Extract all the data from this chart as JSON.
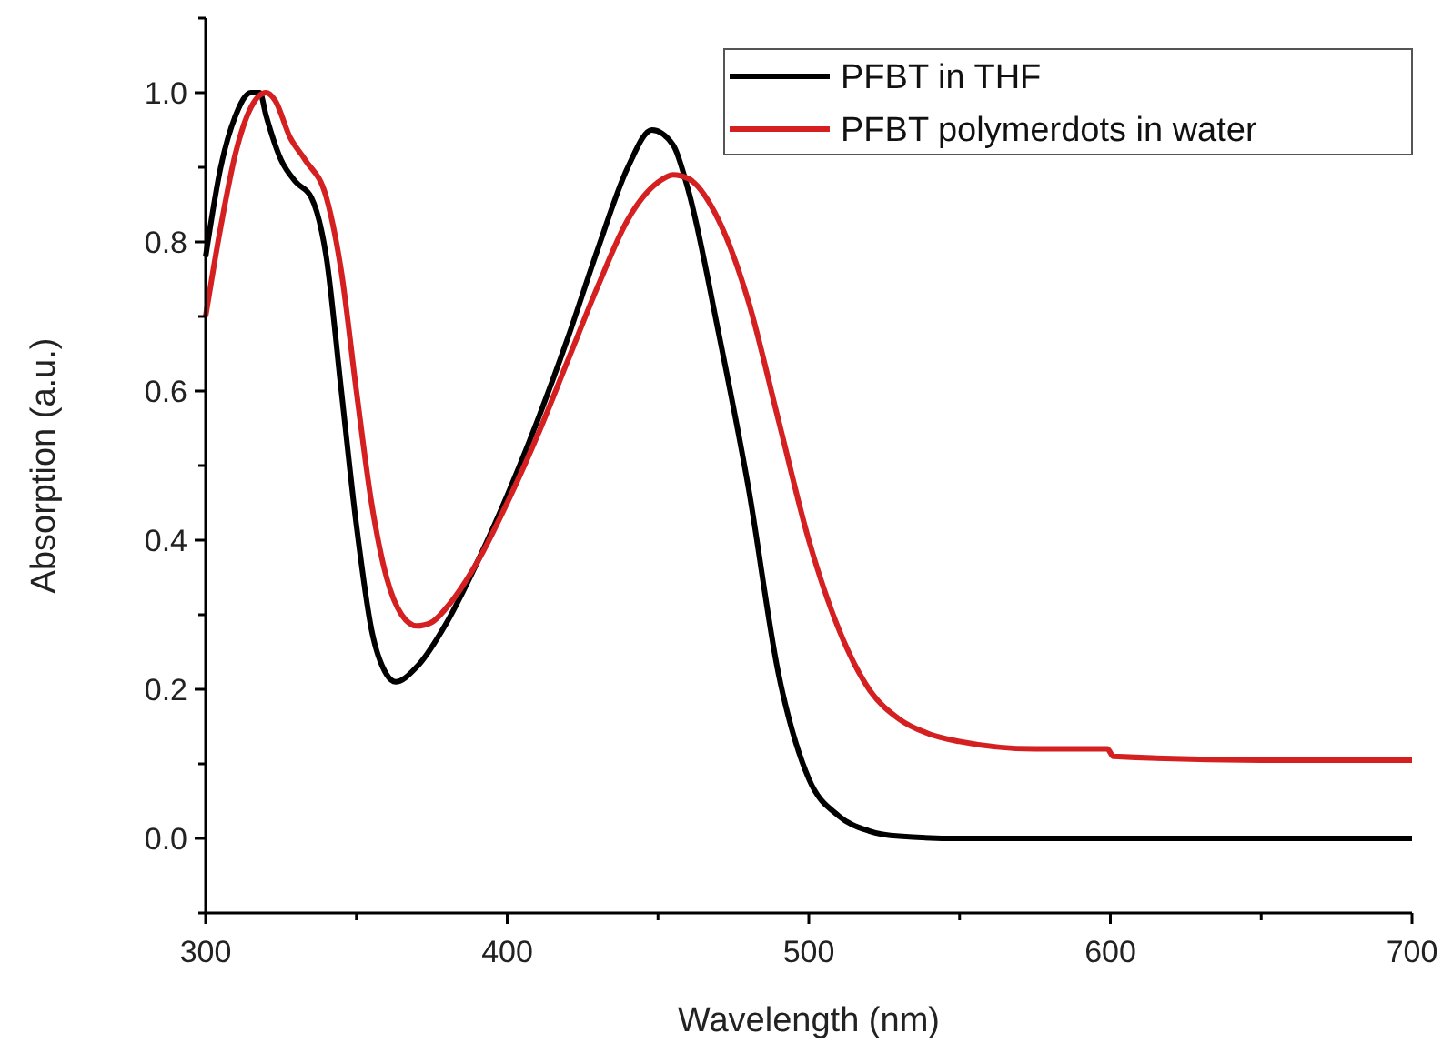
{
  "chart_data": {
    "type": "line",
    "xlabel": "Wavelength (nm)",
    "ylabel": "Absorption (a.u.)",
    "xlim": [
      300,
      700
    ],
    "xticks": [
      300,
      {
        "value": 350,
        "label": null
      },
      400,
      {
        "value": 450,
        "label": null
      },
      500,
      {
        "value": 550,
        "label": null
      },
      600,
      {
        "value": 650,
        "label": null
      },
      700
    ],
    "ylim": [
      -0.1,
      1.1
    ],
    "yticks": [
      {
        "value": -0.1,
        "label": null
      },
      {
        "value": 0,
        "label": "0.0"
      },
      {
        "value": 0.1,
        "label": null
      },
      0.2,
      {
        "value": 0.3,
        "label": null
      },
      0.4,
      {
        "value": 0.5,
        "label": null
      },
      0.6,
      {
        "value": 0.7,
        "label": null
      },
      0.8,
      {
        "value": 0.9,
        "label": null
      },
      {
        "value": 1,
        "label": "1.0"
      },
      {
        "value": 1.1,
        "label": null
      }
    ],
    "grid": false,
    "legend": "top right",
    "marker": "none",
    "line_style": "solid",
    "series": [
      {
        "name": "PFBT in THF",
        "color": "#000000",
        "x": [
          300,
          305,
          310,
          315,
          318,
          320,
          325,
          330,
          335,
          340,
          345,
          350,
          355,
          360,
          363,
          370,
          380,
          390,
          400,
          410,
          420,
          430,
          440,
          448,
          455,
          460,
          470,
          480,
          490,
          500,
          510,
          520,
          530,
          550,
          600,
          650,
          700
        ],
        "values": [
          0.78,
          0.9,
          0.97,
          1.0,
          1.0,
          0.97,
          0.91,
          0.88,
          0.86,
          0.78,
          0.6,
          0.42,
          0.28,
          0.22,
          0.21,
          0.23,
          0.29,
          0.37,
          0.46,
          0.56,
          0.67,
          0.79,
          0.9,
          0.95,
          0.93,
          0.87,
          0.68,
          0.47,
          0.22,
          0.08,
          0.03,
          0.01,
          0.003,
          0.0,
          0.0,
          0.0,
          0.0
        ]
      },
      {
        "name": "PFBT polymerdots in water",
        "color": "#d42020",
        "x": [
          300,
          305,
          310,
          315,
          320,
          323,
          328,
          333,
          340,
          345,
          350,
          355,
          360,
          365,
          370,
          375,
          380,
          390,
          400,
          410,
          420,
          430,
          440,
          450,
          455,
          460,
          470,
          480,
          490,
          500,
          510,
          520,
          530,
          540,
          550,
          575,
          599,
          601,
          650,
          700
        ],
        "values": [
          0.7,
          0.82,
          0.92,
          0.98,
          1.0,
          0.99,
          0.94,
          0.91,
          0.86,
          0.76,
          0.6,
          0.45,
          0.35,
          0.3,
          0.285,
          0.29,
          0.31,
          0.37,
          0.45,
          0.54,
          0.64,
          0.74,
          0.83,
          0.88,
          0.89,
          0.885,
          0.83,
          0.72,
          0.56,
          0.4,
          0.28,
          0.2,
          0.16,
          0.14,
          0.13,
          0.12,
          0.12,
          0.11,
          0.105,
          0.105
        ]
      }
    ]
  }
}
